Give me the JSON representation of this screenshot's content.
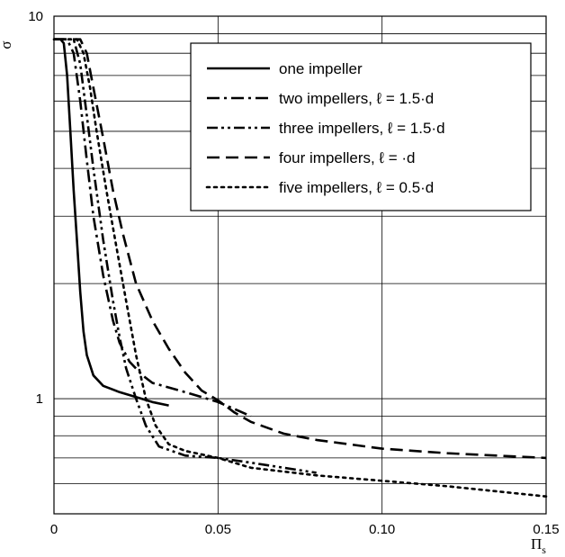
{
  "chart_data": {
    "type": "line",
    "title": "",
    "xlabel": "Π",
    "xlabel_sub": "s",
    "ylabel": "σ",
    "xlim": [
      0,
      0.15
    ],
    "ylim": [
      0.5,
      10
    ],
    "yscale": "log",
    "grid": true,
    "legend_position": "top-right",
    "x_ticks": [
      "0",
      "0.05",
      "0.10",
      "0.15"
    ],
    "y_ticks": [
      "1",
      "10"
    ],
    "series": [
      {
        "name": "one impeller",
        "dash": "solid",
        "points": [
          [
            0,
            8.7
          ],
          [
            0.002,
            8.7
          ],
          [
            0.003,
            8.5
          ],
          [
            0.004,
            7.0
          ],
          [
            0.005,
            5.0
          ],
          [
            0.006,
            3.5
          ],
          [
            0.007,
            2.6
          ],
          [
            0.008,
            1.9
          ],
          [
            0.009,
            1.5
          ],
          [
            0.01,
            1.3
          ],
          [
            0.012,
            1.15
          ],
          [
            0.015,
            1.08
          ],
          [
            0.02,
            1.04
          ],
          [
            0.025,
            1.01
          ],
          [
            0.03,
            0.98
          ],
          [
            0.035,
            0.96
          ]
        ]
      },
      {
        "name": "two impellers, ℓ = 1.5·d",
        "dash": "dashdot",
        "points": [
          [
            0,
            8.7
          ],
          [
            0.004,
            8.7
          ],
          [
            0.006,
            8.0
          ],
          [
            0.008,
            6.0
          ],
          [
            0.01,
            4.2
          ],
          [
            0.012,
            3.0
          ],
          [
            0.015,
            2.1
          ],
          [
            0.018,
            1.6
          ],
          [
            0.02,
            1.4
          ],
          [
            0.023,
            1.25
          ],
          [
            0.027,
            1.15
          ],
          [
            0.03,
            1.1
          ],
          [
            0.035,
            1.07
          ],
          [
            0.04,
            1.04
          ],
          [
            0.045,
            1.01
          ],
          [
            0.05,
            0.98
          ],
          [
            0.055,
            0.94
          ],
          [
            0.06,
            0.9
          ]
        ]
      },
      {
        "name": "three  impellers, ℓ = 1.5·d",
        "dash": "dashdotdot",
        "points": [
          [
            0,
            8.7
          ],
          [
            0.006,
            8.7
          ],
          [
            0.008,
            7.5
          ],
          [
            0.01,
            5.5
          ],
          [
            0.012,
            4.0
          ],
          [
            0.015,
            2.6
          ],
          [
            0.018,
            1.8
          ],
          [
            0.02,
            1.45
          ],
          [
            0.022,
            1.2
          ],
          [
            0.025,
            1.0
          ],
          [
            0.028,
            0.85
          ],
          [
            0.032,
            0.75
          ],
          [
            0.04,
            0.71
          ],
          [
            0.05,
            0.7
          ],
          [
            0.06,
            0.68
          ],
          [
            0.07,
            0.66
          ],
          [
            0.08,
            0.64
          ]
        ]
      },
      {
        "name": "four impellers, ℓ = ·d",
        "dash": "dashed",
        "points": [
          [
            0,
            8.7
          ],
          [
            0.008,
            8.7
          ],
          [
            0.01,
            8.0
          ],
          [
            0.012,
            6.5
          ],
          [
            0.015,
            4.8
          ],
          [
            0.018,
            3.5
          ],
          [
            0.021,
            2.7
          ],
          [
            0.025,
            2.0
          ],
          [
            0.03,
            1.6
          ],
          [
            0.035,
            1.35
          ],
          [
            0.04,
            1.17
          ],
          [
            0.045,
            1.05
          ],
          [
            0.05,
            0.99
          ],
          [
            0.055,
            0.92
          ],
          [
            0.06,
            0.87
          ],
          [
            0.07,
            0.81
          ],
          [
            0.08,
            0.78
          ],
          [
            0.1,
            0.74
          ],
          [
            0.12,
            0.72
          ],
          [
            0.15,
            0.7
          ]
        ]
      },
      {
        "name": "five impellers, ℓ = 0.5·d",
        "dash": "dotted",
        "points": [
          [
            0,
            8.7
          ],
          [
            0.007,
            8.7
          ],
          [
            0.009,
            8.0
          ],
          [
            0.011,
            6.5
          ],
          [
            0.013,
            5.0
          ],
          [
            0.016,
            3.5
          ],
          [
            0.019,
            2.5
          ],
          [
            0.022,
            1.8
          ],
          [
            0.025,
            1.3
          ],
          [
            0.028,
            1.0
          ],
          [
            0.031,
            0.85
          ],
          [
            0.035,
            0.76
          ],
          [
            0.04,
            0.73
          ],
          [
            0.05,
            0.7
          ],
          [
            0.06,
            0.66
          ],
          [
            0.08,
            0.63
          ],
          [
            0.1,
            0.61
          ],
          [
            0.12,
            0.59
          ],
          [
            0.15,
            0.555
          ]
        ]
      }
    ]
  }
}
